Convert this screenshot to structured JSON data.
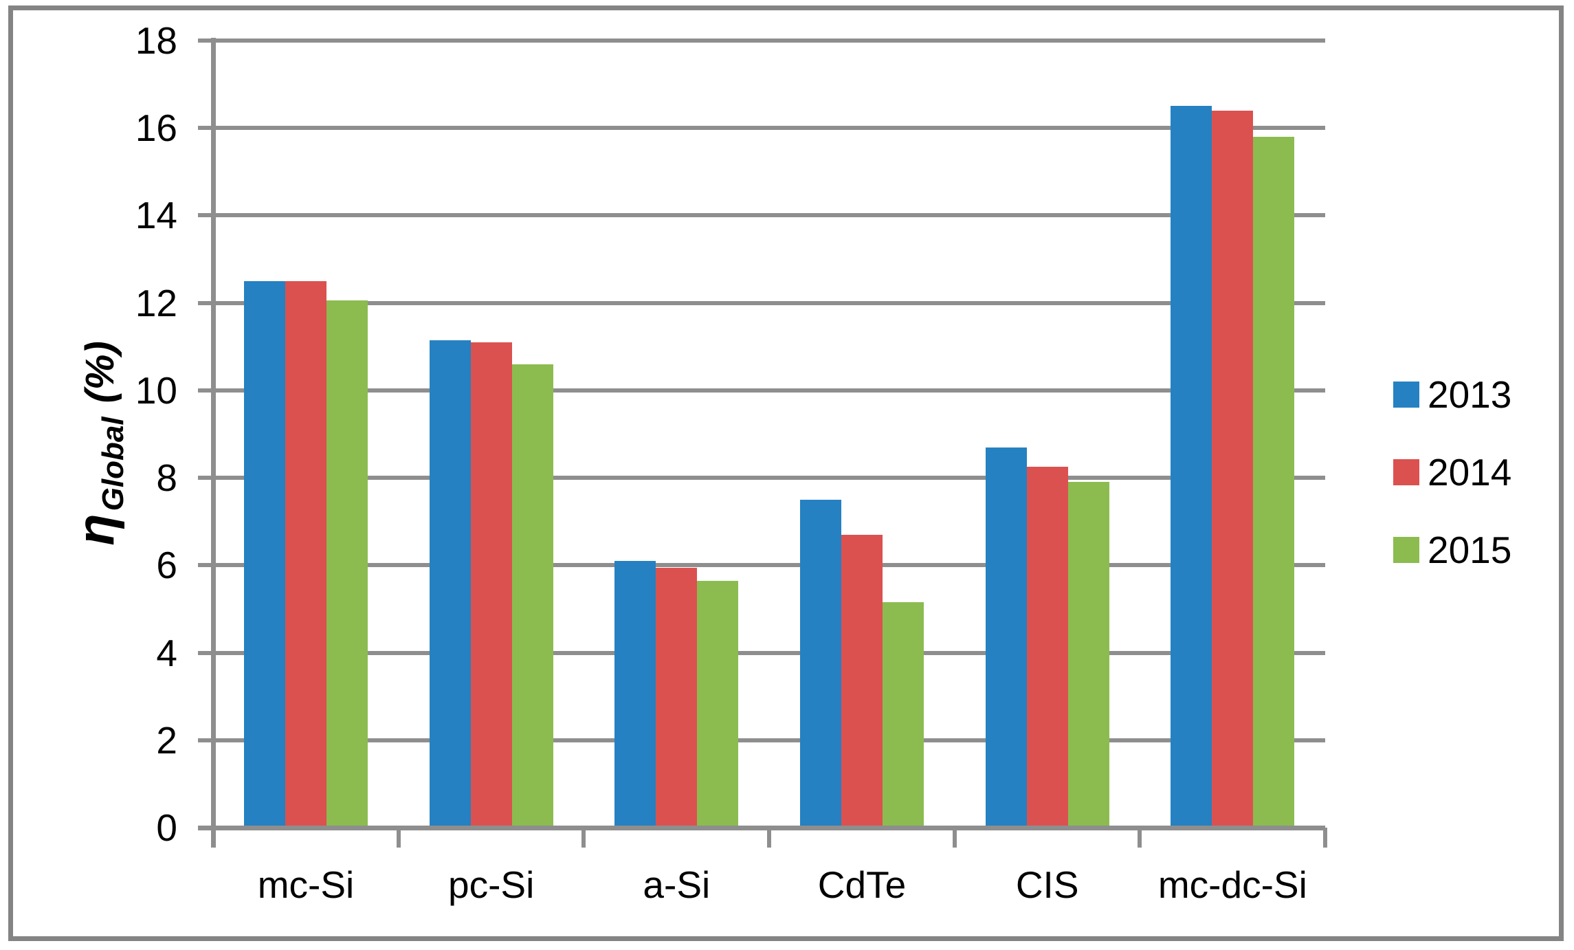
{
  "figure": {
    "background": "#ffffff",
    "frame_border_color": "#848484"
  },
  "chart_data": {
    "type": "bar",
    "title": "",
    "xlabel": "",
    "y_axis_label": {
      "symbol": "η",
      "subscript": "Global",
      "suffix": "(%)"
    },
    "categories": [
      "mc-Si",
      "pc-Si",
      "a-Si",
      "CdTe",
      "CIS",
      "mc-dc-Si"
    ],
    "series": [
      {
        "name": "2013",
        "color": "#2581C1",
        "values": [
          12.5,
          11.15,
          6.1,
          7.5,
          8.7,
          16.5
        ]
      },
      {
        "name": "2014",
        "color": "#DB5150",
        "values": [
          12.5,
          11.1,
          5.95,
          6.7,
          8.25,
          16.4
        ]
      },
      {
        "name": "2015",
        "color": "#8CBC50",
        "values": [
          12.05,
          10.6,
          5.65,
          5.15,
          7.9,
          15.8
        ]
      }
    ],
    "y_ticks": [
      0,
      2,
      4,
      6,
      8,
      10,
      12,
      14,
      16,
      18
    ],
    "ylim": [
      0,
      18
    ],
    "grid": true,
    "grid_color": "#8E8E8E",
    "axis_color": "#8E8E8E",
    "legend_position": "right"
  }
}
